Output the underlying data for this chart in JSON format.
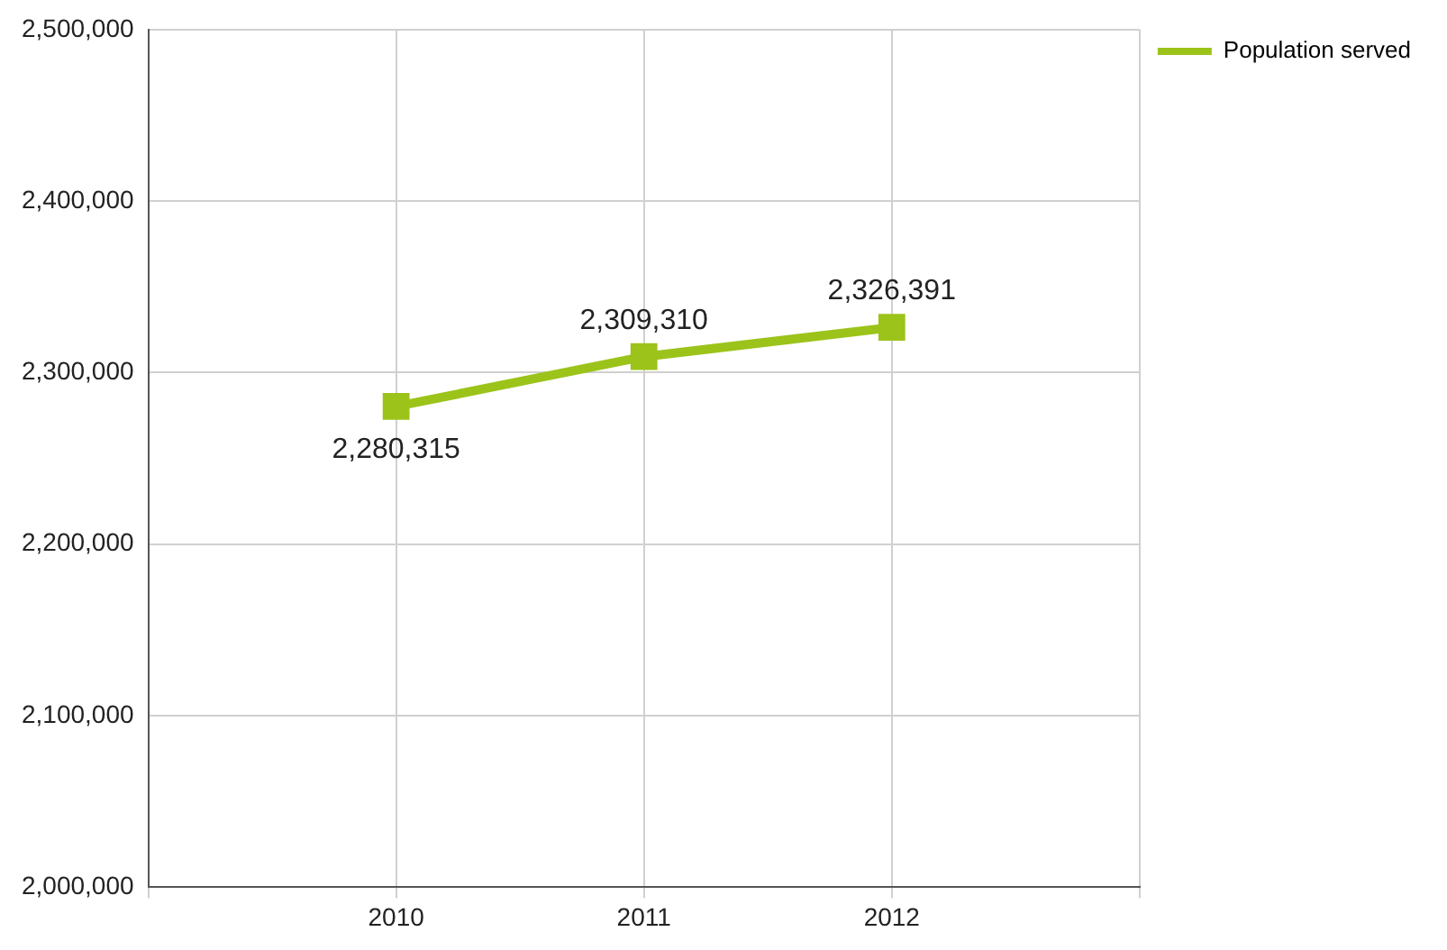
{
  "chart_data": {
    "type": "line",
    "categories": [
      "2010",
      "2011",
      "2012"
    ],
    "series": [
      {
        "name": "Population served",
        "color": "#9cc31a",
        "values": [
          2280315,
          2309310,
          2326391
        ],
        "value_labels": [
          "2,280,315",
          "2,309,310",
          "2,326,391"
        ]
      }
    ],
    "ylim": [
      2000000,
      2500000
    ],
    "yticks": [
      {
        "value": 2000000,
        "label": "2,000,000"
      },
      {
        "value": 2100000,
        "label": "2,100,000"
      },
      {
        "value": 2200000,
        "label": "2,200,000"
      },
      {
        "value": 2300000,
        "label": "2,300,000"
      },
      {
        "value": 2400000,
        "label": "2,400,000"
      },
      {
        "value": 2500000,
        "label": "2,500,000"
      }
    ],
    "grid": true,
    "legend": "top right",
    "marker": "square",
    "line_style": "solid"
  }
}
